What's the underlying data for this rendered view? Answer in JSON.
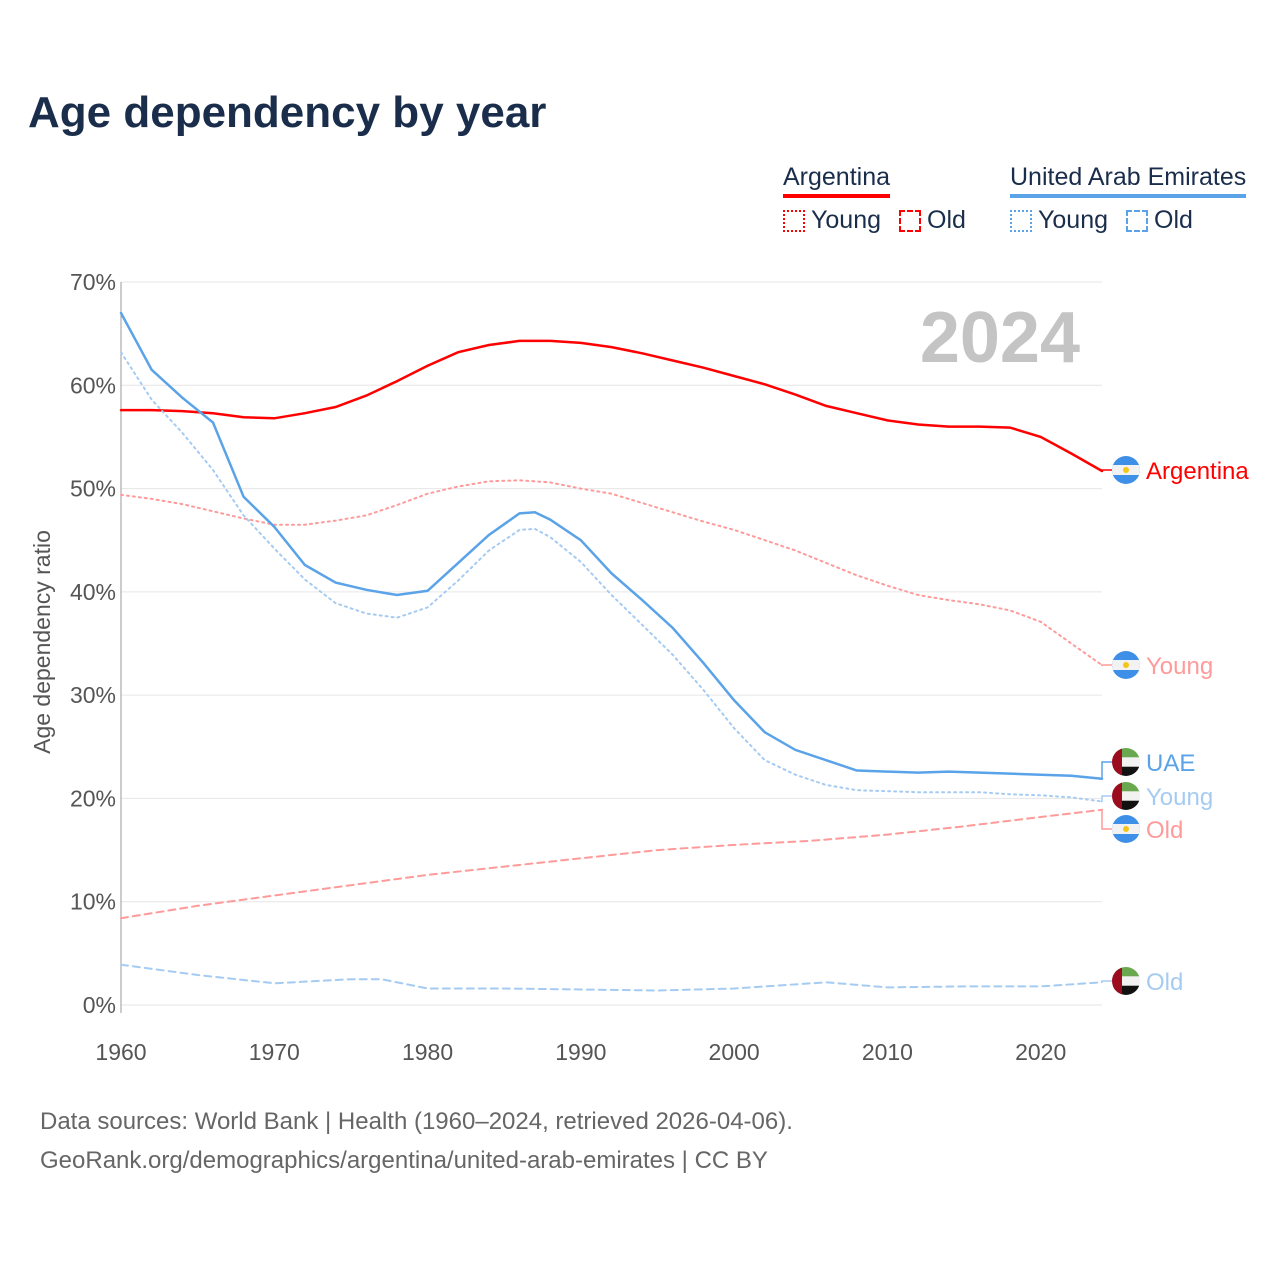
{
  "title": "Age dependency by year",
  "legend": {
    "groups": [
      {
        "country": "Argentina",
        "color": "#ff0000",
        "items": [
          {
            "label": "Young",
            "style": "dotted"
          },
          {
            "label": "Old",
            "style": "dashed"
          }
        ]
      },
      {
        "country": "United Arab Emirates",
        "color": "#5aa3e8",
        "items": [
          {
            "label": "Young",
            "style": "dotted"
          },
          {
            "label": "Old",
            "style": "dashed"
          }
        ]
      }
    ]
  },
  "year_watermark": "2024",
  "footer": {
    "line1": "Data sources: World Bank | Health (1960–2024, retrieved 2026-04-06).",
    "line2": "GeoRank.org/demographics/argentina/united-arab-emirates | CC BY"
  },
  "chart_data": {
    "type": "line",
    "title": "Age dependency by year",
    "xlabel": "",
    "ylabel": "Age dependency ratio",
    "xlim": [
      1960,
      2024
    ],
    "ylim": [
      0,
      70
    ],
    "x_ticks": [
      "1960",
      "1970",
      "1980",
      "1990",
      "2000",
      "2010",
      "2020"
    ],
    "y_ticks": [
      "0%",
      "10%",
      "20%",
      "30%",
      "40%",
      "50%",
      "60%",
      "70%"
    ],
    "grid": true,
    "series": [
      {
        "name": "Argentina",
        "end_label": "Argentina",
        "flag": "argentina",
        "color": "#ff0000",
        "style": "solid",
        "x": [
          1960,
          1962,
          1964,
          1966,
          1968,
          1970,
          1972,
          1974,
          1976,
          1978,
          1980,
          1982,
          1984,
          1986,
          1988,
          1990,
          1992,
          1994,
          1996,
          1998,
          2000,
          2002,
          2004,
          2006,
          2008,
          2010,
          2012,
          2014,
          2016,
          2018,
          2020,
          2022,
          2024
        ],
        "y": [
          57.6,
          57.6,
          57.5,
          57.3,
          56.9,
          56.8,
          57.3,
          57.9,
          59.0,
          60.4,
          61.9,
          63.2,
          63.9,
          64.3,
          64.3,
          64.1,
          63.7,
          63.1,
          62.4,
          61.7,
          60.9,
          60.1,
          59.1,
          58.0,
          57.3,
          56.6,
          56.2,
          56.0,
          56.0,
          55.9,
          55.0,
          53.4,
          51.7
        ]
      },
      {
        "name": "Argentina Young",
        "end_label": "Young",
        "flag": "argentina",
        "color": "#ff9a9a",
        "style": "dotted",
        "x": [
          1960,
          1962,
          1964,
          1966,
          1968,
          1970,
          1972,
          1974,
          1976,
          1978,
          1980,
          1982,
          1984,
          1986,
          1988,
          1990,
          1992,
          1994,
          1996,
          1998,
          2000,
          2002,
          2004,
          2006,
          2008,
          2010,
          2012,
          2014,
          2016,
          2018,
          2020,
          2022,
          2024
        ],
        "y": [
          49.4,
          49.0,
          48.5,
          47.8,
          47.1,
          46.5,
          46.5,
          46.9,
          47.4,
          48.4,
          49.5,
          50.2,
          50.7,
          50.8,
          50.6,
          50.0,
          49.5,
          48.6,
          47.7,
          46.8,
          46.0,
          45.0,
          44.0,
          42.8,
          41.6,
          40.6,
          39.7,
          39.2,
          38.8,
          38.2,
          37.1,
          35.0,
          32.9
        ]
      },
      {
        "name": "UAE",
        "end_label": "UAE",
        "flag": "uae",
        "color": "#5aa3e8",
        "style": "solid",
        "x": [
          1960,
          1962,
          1964,
          1966,
          1968,
          1970,
          1972,
          1974,
          1976,
          1978,
          1980,
          1982,
          1984,
          1986,
          1987,
          1988,
          1990,
          1992,
          1994,
          1996,
          1998,
          2000,
          2002,
          2004,
          2006,
          2008,
          2010,
          2012,
          2014,
          2016,
          2018,
          2020,
          2022,
          2024
        ],
        "y": [
          67.0,
          61.5,
          58.8,
          56.4,
          49.2,
          46.3,
          42.6,
          40.9,
          40.2,
          39.7,
          40.1,
          42.8,
          45.5,
          47.6,
          47.7,
          47.0,
          45.0,
          41.8,
          39.2,
          36.5,
          33.1,
          29.5,
          26.4,
          24.7,
          23.7,
          22.7,
          22.6,
          22.5,
          22.6,
          22.5,
          22.4,
          22.3,
          22.2,
          21.9
        ]
      },
      {
        "name": "UAE Young",
        "end_label": "Young",
        "flag": "uae",
        "color": "#a6cbf2",
        "style": "dotted",
        "x": [
          1960,
          1962,
          1964,
          1966,
          1968,
          1970,
          1972,
          1974,
          1976,
          1978,
          1980,
          1982,
          1984,
          1986,
          1987,
          1988,
          1990,
          1992,
          1994,
          1996,
          1998,
          2000,
          2002,
          2004,
          2006,
          2008,
          2010,
          2012,
          2014,
          2016,
          2018,
          2020,
          2022,
          2024
        ],
        "y": [
          63.2,
          58.6,
          55.4,
          51.8,
          47.4,
          44.2,
          41.2,
          38.9,
          37.9,
          37.5,
          38.5,
          41.1,
          44.0,
          46.0,
          46.1,
          45.3,
          42.9,
          39.7,
          36.8,
          33.9,
          30.5,
          26.8,
          23.7,
          22.3,
          21.3,
          20.8,
          20.7,
          20.6,
          20.6,
          20.6,
          20.4,
          20.3,
          20.1,
          19.7
        ]
      },
      {
        "name": "Argentina Old",
        "end_label": "Old",
        "flag": "argentina",
        "color": "#ff9a9a",
        "style": "dashed",
        "x": [
          1960,
          1965,
          1970,
          1975,
          1980,
          1985,
          1990,
          1995,
          2000,
          2005,
          2010,
          2015,
          2020,
          2024
        ],
        "y": [
          8.4,
          9.6,
          10.6,
          11.6,
          12.6,
          13.4,
          14.2,
          15.0,
          15.5,
          15.9,
          16.5,
          17.3,
          18.2,
          18.9
        ]
      },
      {
        "name": "UAE Old",
        "end_label": "Old",
        "flag": "uae",
        "color": "#a6cbf2",
        "style": "dashed",
        "x": [
          1960,
          1965,
          1970,
          1975,
          1977,
          1980,
          1985,
          1990,
          1995,
          2000,
          2006,
          2010,
          2015,
          2020,
          2024
        ],
        "y": [
          3.9,
          2.9,
          2.1,
          2.5,
          2.5,
          1.6,
          1.6,
          1.5,
          1.4,
          1.6,
          2.2,
          1.7,
          1.8,
          1.8,
          2.2
        ]
      }
    ]
  }
}
